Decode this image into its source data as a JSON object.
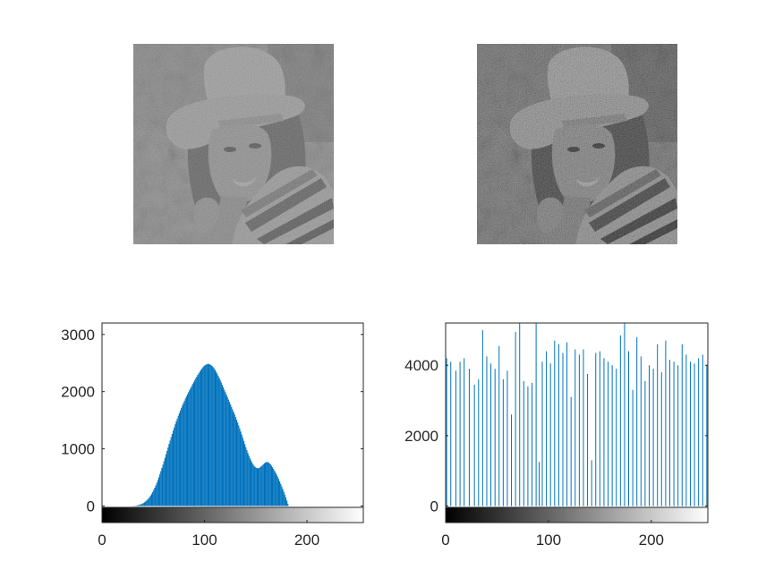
{
  "chart_data": [
    {
      "type": "image",
      "colormap": "gray",
      "description_visible": false
    },
    {
      "type": "image",
      "colormap": "gray",
      "description_visible": false
    },
    {
      "type": "bar",
      "color": "#0072bd",
      "xlim": [
        0,
        255
      ],
      "ylim": [
        -290,
        3200
      ],
      "xticks": [
        "0",
        "100",
        "200"
      ],
      "yticks": [
        "0",
        "1000",
        "2000",
        "3000"
      ],
      "colorbar": "gray",
      "x_range": [
        0,
        255
      ],
      "values": [
        0,
        0,
        0,
        0,
        0,
        0,
        0,
        0,
        0,
        0,
        0,
        0,
        0,
        0,
        0,
        0,
        0,
        0,
        0,
        0,
        0,
        0,
        0,
        0,
        0,
        0,
        0,
        0,
        0,
        2,
        3,
        4,
        6,
        8,
        12,
        16,
        21,
        27,
        34,
        42,
        52,
        64,
        78,
        94,
        112,
        133,
        157,
        183,
        212,
        244,
        280,
        318,
        360,
        405,
        452,
        502,
        555,
        610,
        666,
        724,
        783,
        843,
        904,
        964,
        1024,
        1085,
        1144,
        1203,
        1261,
        1318,
        1373,
        1427,
        1479,
        1529,
        1579,
        1626,
        1672,
        1716,
        1759,
        1800,
        1840,
        1880,
        1917,
        1955,
        1991,
        2027,
        2062,
        2097,
        2131,
        2164,
        2197,
        2229,
        2261,
        2292,
        2322,
        2351,
        2378,
        2402,
        2425,
        2444,
        2460,
        2472,
        2480,
        2484,
        2482,
        2476,
        2465,
        2449,
        2430,
        2406,
        2378,
        2348,
        2314,
        2278,
        2240,
        2200,
        2159,
        2117,
        2075,
        2032,
        1990,
        1947,
        1905,
        1862,
        1820,
        1777,
        1734,
        1691,
        1647,
        1602,
        1556,
        1508,
        1459,
        1408,
        1356,
        1302,
        1247,
        1192,
        1137,
        1082,
        1028,
        976,
        926,
        879,
        835,
        795,
        760,
        729,
        703,
        683,
        669,
        661,
        660,
        666,
        678,
        694,
        712,
        730,
        747,
        760,
        768,
        769,
        762,
        748,
        728,
        704,
        677,
        648,
        617,
        584,
        549,
        512,
        472,
        431,
        388,
        343,
        297,
        249,
        199,
        148,
        95,
        41,
        0,
        0,
        0,
        0,
        0,
        0,
        0,
        0,
        0,
        0,
        0,
        0,
        0,
        0,
        0,
        0,
        0,
        0,
        0,
        0,
        0,
        0,
        0,
        0,
        0,
        0,
        0,
        0,
        0,
        0,
        0,
        0,
        0,
        0,
        0,
        0,
        0,
        0,
        0,
        0,
        0,
        0,
        0,
        0,
        0,
        0,
        0,
        0,
        0,
        0,
        0,
        0,
        0,
        0,
        0,
        0,
        0,
        0,
        0,
        0,
        0,
        0,
        0,
        0
      ]
    },
    {
      "type": "bar",
      "color": "#0072bd",
      "xlim": [
        0,
        255
      ],
      "ylim": [
        -470,
        5200
      ],
      "xticks": [
        "0",
        "100",
        "200"
      ],
      "yticks": [
        "0",
        "2000",
        "4000"
      ],
      "colorbar": "gray",
      "spikes": [
        {
          "x": 1,
          "y": 4200
        },
        {
          "x": 5,
          "y": 4100
        },
        {
          "x": 10,
          "y": 3850
        },
        {
          "x": 14,
          "y": 4100
        },
        {
          "x": 18,
          "y": 4200
        },
        {
          "x": 23,
          "y": 3900
        },
        {
          "x": 28,
          "y": 3450
        },
        {
          "x": 32,
          "y": 3600
        },
        {
          "x": 36,
          "y": 5000
        },
        {
          "x": 40,
          "y": 4250
        },
        {
          "x": 44,
          "y": 4050
        },
        {
          "x": 48,
          "y": 3900
        },
        {
          "x": 52,
          "y": 4550
        },
        {
          "x": 56,
          "y": 3600
        },
        {
          "x": 60,
          "y": 3850
        },
        {
          "x": 64,
          "y": 2600
        },
        {
          "x": 68,
          "y": 4950
        },
        {
          "x": 72,
          "y": 5200
        },
        {
          "x": 76,
          "y": 3550
        },
        {
          "x": 80,
          "y": 3400
        },
        {
          "x": 84,
          "y": 3500
        },
        {
          "x": 88,
          "y": 5200
        },
        {
          "x": 91,
          "y": 1250
        },
        {
          "x": 94,
          "y": 4100
        },
        {
          "x": 98,
          "y": 4400
        },
        {
          "x": 102,
          "y": 4050
        },
        {
          "x": 106,
          "y": 4700
        },
        {
          "x": 110,
          "y": 4600
        },
        {
          "x": 114,
          "y": 4350
        },
        {
          "x": 118,
          "y": 4650
        },
        {
          "x": 122,
          "y": 3100
        },
        {
          "x": 126,
          "y": 4450
        },
        {
          "x": 130,
          "y": 4300
        },
        {
          "x": 134,
          "y": 4450
        },
        {
          "x": 138,
          "y": 3750
        },
        {
          "x": 142,
          "y": 1300
        },
        {
          "x": 146,
          "y": 4350
        },
        {
          "x": 150,
          "y": 4400
        },
        {
          "x": 154,
          "y": 4200
        },
        {
          "x": 158,
          "y": 4100
        },
        {
          "x": 162,
          "y": 4000
        },
        {
          "x": 166,
          "y": 3900
        },
        {
          "x": 170,
          "y": 4850
        },
        {
          "x": 174,
          "y": 5200
        },
        {
          "x": 178,
          "y": 4400
        },
        {
          "x": 182,
          "y": 3300
        },
        {
          "x": 186,
          "y": 4800
        },
        {
          "x": 190,
          "y": 4250
        },
        {
          "x": 194,
          "y": 3550
        },
        {
          "x": 198,
          "y": 4000
        },
        {
          "x": 202,
          "y": 3900
        },
        {
          "x": 206,
          "y": 4600
        },
        {
          "x": 210,
          "y": 3800
        },
        {
          "x": 214,
          "y": 4700
        },
        {
          "x": 218,
          "y": 4150
        },
        {
          "x": 222,
          "y": 4100
        },
        {
          "x": 226,
          "y": 4000
        },
        {
          "x": 230,
          "y": 4600
        },
        {
          "x": 234,
          "y": 4300
        },
        {
          "x": 238,
          "y": 4100
        },
        {
          "x": 242,
          "y": 4050
        },
        {
          "x": 246,
          "y": 4200
        },
        {
          "x": 250,
          "y": 4300
        },
        {
          "x": 254,
          "y": 4000
        }
      ]
    }
  ]
}
